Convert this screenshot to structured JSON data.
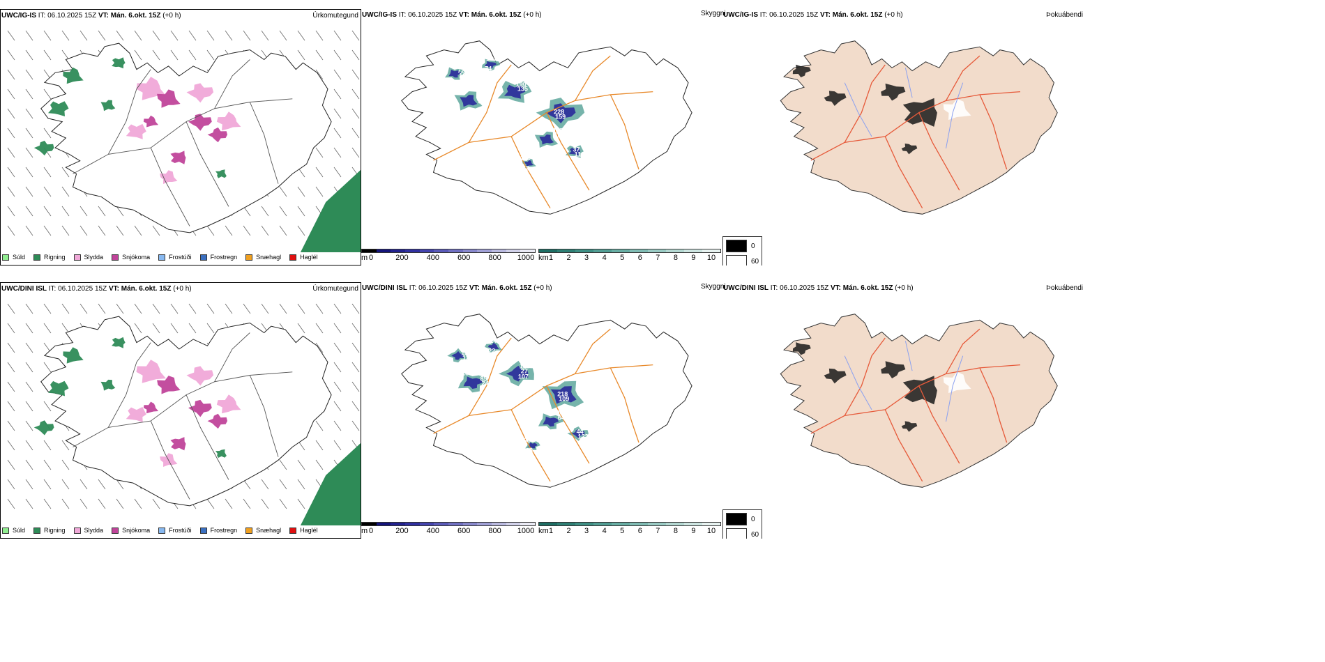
{
  "rows": [
    {
      "precip": {
        "model": "UWC/IG-IS",
        "it_label": "IT:",
        "it_value": "06.10.2025 15Z",
        "vt_label": "VT:",
        "vt_value": "Mán. 6.okt. 15Z",
        "lead": "(+0 h)",
        "title": "Úrkomutegund"
      },
      "cloud": {
        "model": "UWC/IG-IS",
        "it_label": "IT:",
        "it_value": "06.10.2025 15Z",
        "vt_label": "VT:",
        "vt_value": "Mán. 6.okt. 15Z",
        "lead": "(+0 h)",
        "title": "Skyggni",
        "labels": [
          "15",
          "135",
          "159",
          "164",
          "110",
          "109",
          "162",
          "161",
          "89",
          "190",
          "228",
          "119",
          "37",
          "182",
          "72",
          "74"
        ]
      },
      "fog": {
        "model": "UWC/IG-IS",
        "it_label": "IT:",
        "it_value": "06.10.2025 15Z",
        "vt_label": "VT:",
        "vt_value": "Mán. 6.okt. 15Z",
        "lead": "(+0 h)",
        "title": "Þokuábendi"
      }
    },
    {
      "precip": {
        "model": "UWC/DINI ISL",
        "it_label": "IT:",
        "it_value": "06.10.2025 15Z",
        "vt_label": "VT:",
        "vt_value": "Mán. 6.okt. 15Z",
        "lead": "(+0 h)",
        "title": "Úrkomutegund"
      },
      "cloud": {
        "model": "UWC/DINI ISL",
        "it_label": "IT:",
        "it_value": "06.10.2025 15Z",
        "vt_label": "VT:",
        "vt_value": "Mán. 6.okt. 15Z",
        "lead": "(+0 h)",
        "title": "Skyggni",
        "labels": [
          "183",
          "27",
          "109",
          "64",
          "123",
          "95",
          "127",
          "241",
          "243",
          "120",
          "218",
          "90",
          "44",
          "183",
          "182",
          "22",
          "85",
          "107"
        ]
      },
      "fog": {
        "model": "UWC/DINI ISL",
        "it_label": "IT:",
        "it_value": "06.10.2025 15Z",
        "vt_label": "VT:",
        "vt_value": "Mán. 6.okt. 15Z",
        "lead": "(+0 h)",
        "title": "Þokuábendi"
      }
    }
  ],
  "precip_legend": [
    {
      "label": "Súld",
      "color": "#90ee90"
    },
    {
      "label": "Rigning",
      "color": "#2e8b57"
    },
    {
      "label": "Slydda",
      "color": "#f0a8d8"
    },
    {
      "label": "Snjókoma",
      "color": "#c0449a"
    },
    {
      "label": "Frostúði",
      "color": "#87b8f0"
    },
    {
      "label": "Frostregn",
      "color": "#3a6fc0"
    },
    {
      "label": "Snæhagl",
      "color": "#f0a020"
    },
    {
      "label": "Haglél",
      "color": "#e01010"
    }
  ],
  "height_bar": {
    "unit": "m",
    "ticks": [
      "0",
      "200",
      "400",
      "600",
      "800",
      "1000"
    ],
    "colors": [
      "#000000",
      "#14147a",
      "#22228e",
      "#3030a0",
      "#4444ae",
      "#5a5ab8",
      "#7070c2",
      "#8888cc",
      "#a0a0d6",
      "#babae0",
      "#d2d2ea",
      "#ebebf5"
    ]
  },
  "km_bar": {
    "unit": "km",
    "ticks": [
      "1",
      "2",
      "3",
      "4",
      "5",
      "6",
      "7",
      "8",
      "9",
      "10"
    ],
    "colors": [
      "#1e6e64",
      "#2e7f74",
      "#3e8f84",
      "#529e94",
      "#68aea4",
      "#80bcb4",
      "#9acbc4",
      "#b4d8d2",
      "#cee6e2",
      "#e8f3f1"
    ]
  },
  "fog_legend": [
    {
      "label": "0",
      "color": "#000000"
    },
    {
      "label": "60",
      "color": "#ffffff"
    }
  ],
  "colors": {
    "rain": "#2e8b57",
    "sleet": "#f0a8d8",
    "snow": "#c0449a",
    "road": "#e8892a",
    "fog_land": "#f2dccb",
    "fog_road": "#e65a3a",
    "river": "#8aa0f0"
  }
}
